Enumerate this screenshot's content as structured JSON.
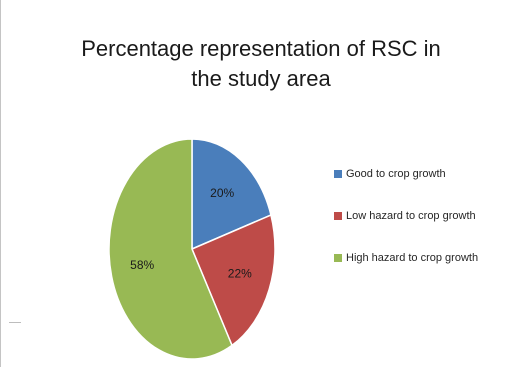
{
  "chart_data": {
    "type": "pie",
    "title_line1": "Percentage representation of RSC in",
    "title_line2": "the study area",
    "categories": [
      "Good to crop growth",
      "Low hazard to crop growth",
      "High hazard to crop growth"
    ],
    "values": [
      20,
      22,
      58
    ],
    "data_labels": [
      "20%",
      "22%",
      "58%"
    ],
    "colors": [
      "#4a7ebb",
      "#be4b48",
      "#98b954"
    ],
    "start_angle_deg": 0,
    "direction": "clockwise",
    "legend_position": "right"
  }
}
